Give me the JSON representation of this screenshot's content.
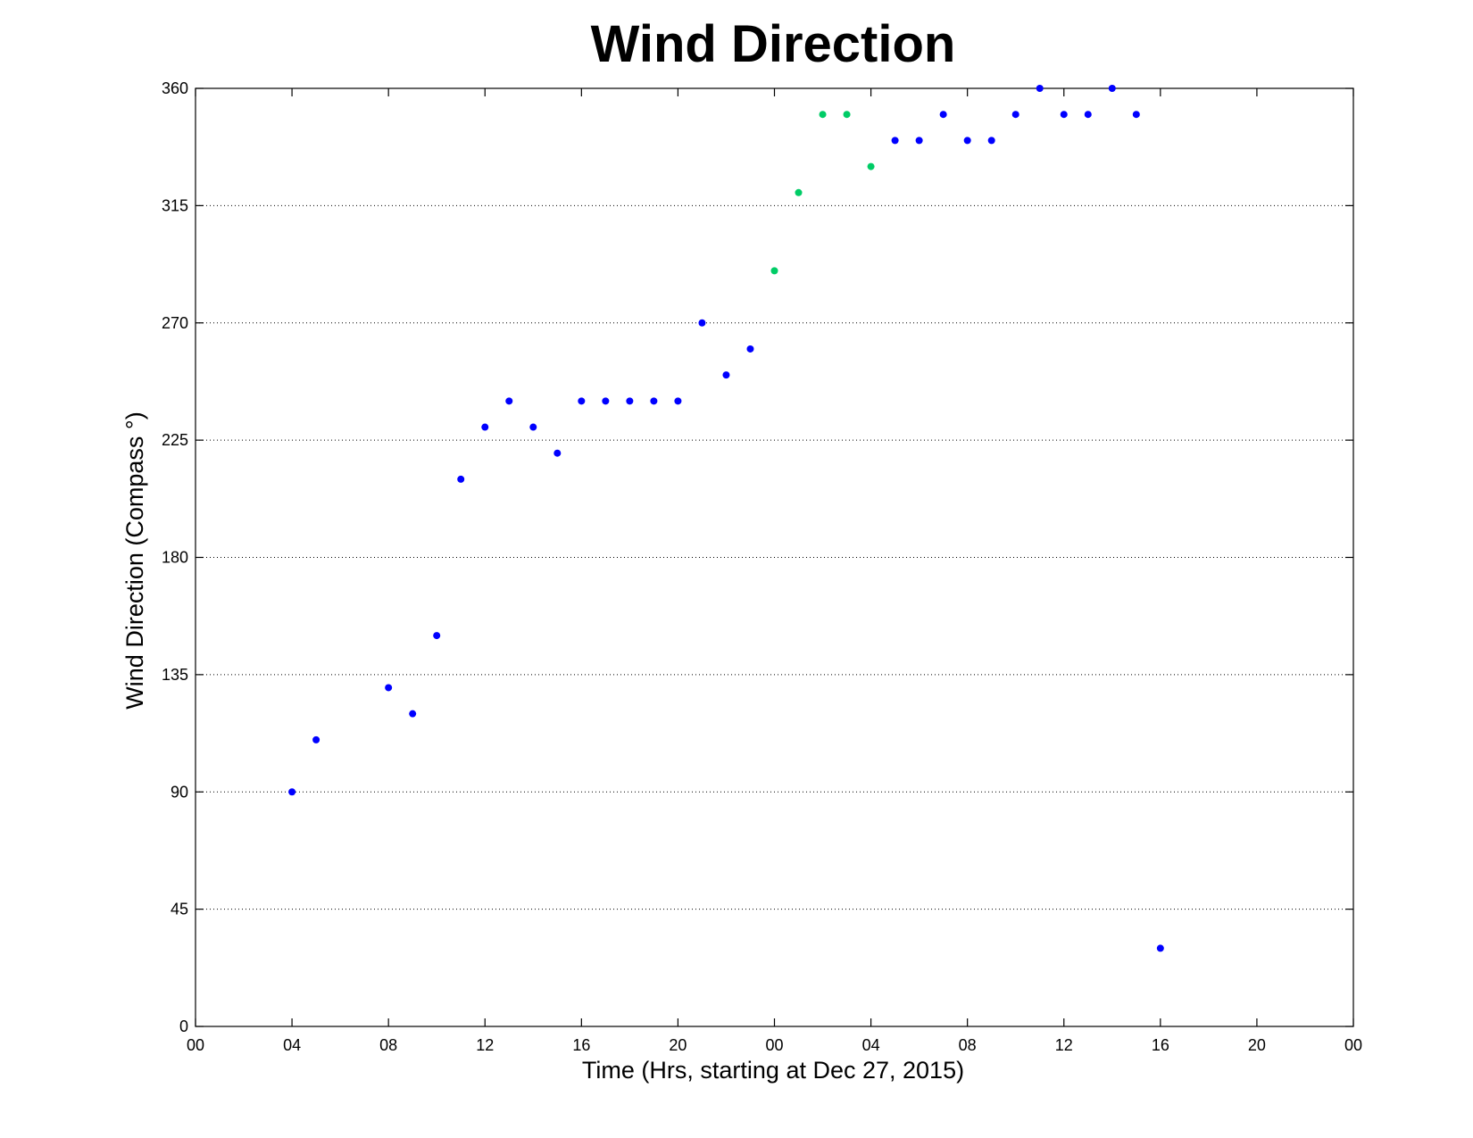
{
  "chart_data": {
    "type": "scatter",
    "title": "Wind Direction",
    "xlabel": "Time (Hrs, starting at Dec 27, 2015)",
    "ylabel": "Wind Direction (Compass  °)",
    "xlim": [
      0,
      48
    ],
    "ylim": [
      0,
      360
    ],
    "x_ticks": [
      0,
      4,
      8,
      12,
      16,
      20,
      24,
      28,
      32,
      36,
      40,
      44,
      48
    ],
    "x_tick_labels": [
      "00",
      "04",
      "08",
      "12",
      "16",
      "20",
      "00",
      "04",
      "08",
      "12",
      "16",
      "20",
      "00"
    ],
    "y_ticks": [
      0,
      45,
      90,
      135,
      180,
      225,
      270,
      315,
      360
    ],
    "y_tick_labels": [
      "0",
      "45",
      "90",
      "135",
      "180",
      "225",
      "270",
      "315",
      "360"
    ],
    "grid": "horizontal",
    "series": [
      {
        "color": "#0000ff",
        "points": [
          [
            4,
            90
          ],
          [
            5,
            110
          ],
          [
            8,
            130
          ],
          [
            9,
            120
          ],
          [
            10,
            150
          ],
          [
            11,
            210
          ],
          [
            12,
            230
          ],
          [
            13,
            240
          ],
          [
            14,
            230
          ],
          [
            15,
            220
          ],
          [
            16,
            240
          ],
          [
            17,
            240
          ],
          [
            18,
            240
          ],
          [
            19,
            240
          ],
          [
            20,
            240
          ],
          [
            21,
            270
          ],
          [
            22,
            250
          ],
          [
            23,
            260
          ],
          [
            29,
            340
          ],
          [
            30,
            340
          ],
          [
            31,
            350
          ],
          [
            32,
            340
          ],
          [
            33,
            340
          ],
          [
            34,
            350
          ],
          [
            35,
            360
          ],
          [
            36,
            350
          ],
          [
            37,
            350
          ],
          [
            38,
            360
          ],
          [
            39,
            350
          ],
          [
            40,
            30
          ]
        ]
      },
      {
        "color": "#00cc66",
        "points": [
          [
            24,
            290
          ],
          [
            25,
            320
          ],
          [
            26,
            350
          ],
          [
            27,
            350
          ],
          [
            28,
            330
          ]
        ]
      }
    ]
  }
}
